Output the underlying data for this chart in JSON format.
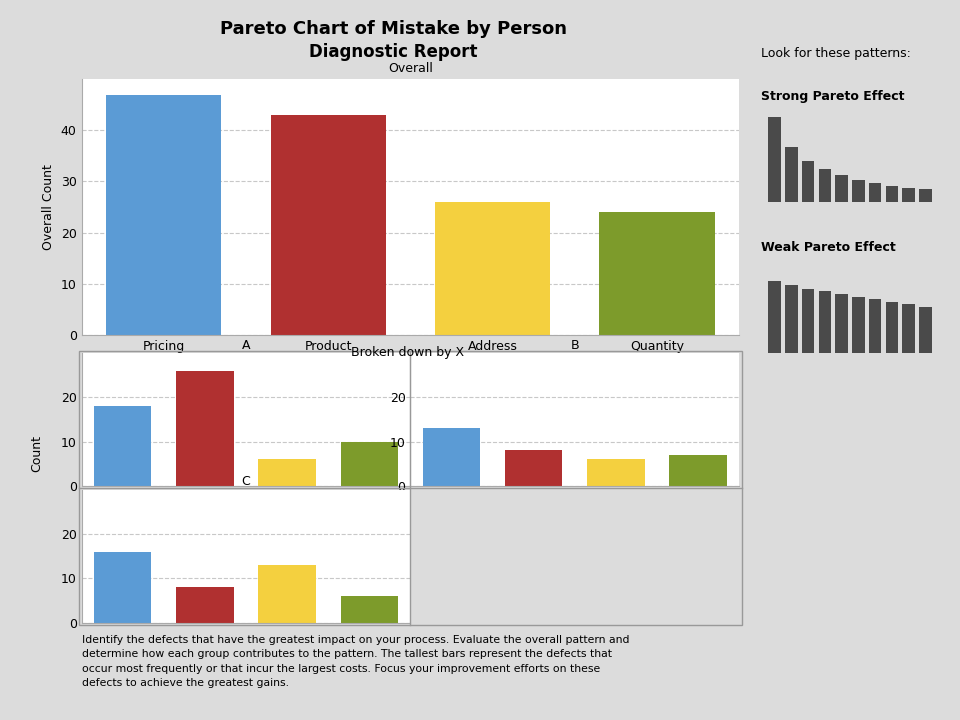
{
  "title_line1": "Pareto Chart of Mistake by Person",
  "title_line2": "Diagnostic Report",
  "overall_label": "Overall",
  "broken_label": "Broken down by X",
  "categories": [
    "Pricing",
    "Product",
    "Address",
    "Quantity"
  ],
  "overall_values": [
    47,
    43,
    26,
    24
  ],
  "overall_colors": [
    "#5B9BD5",
    "#B03030",
    "#F4D03F",
    "#7D9B2B"
  ],
  "overall_ylabel": "Overall Count",
  "overall_ylim": [
    0,
    50
  ],
  "subplot_ylabel": "Count",
  "subplot_ylim": [
    0,
    30
  ],
  "group_A": [
    18,
    26,
    6,
    10
  ],
  "group_B": [
    13,
    8,
    6,
    7
  ],
  "group_C": [
    16,
    8,
    13,
    6
  ],
  "bar_colors": [
    "#5B9BD5",
    "#B03030",
    "#F4D03F",
    "#7D9B2B"
  ],
  "bg_color": "#DCDCDC",
  "plot_bg": "#FFFFFF",
  "annotation_text": "Identify the defects that have the greatest impact on your process. Evaluate the overall pattern and\ndetermine how each group contributes to the pattern. The tallest bars represent the defects that\noccur most frequently or that incur the largest costs. Focus your improvement efforts on these\ndefects to achieve the greatest gains.",
  "look_for_title": "Look for these patterns:",
  "strong_title": "Strong Pareto Effect",
  "weak_title": "Weak Pareto Effect",
  "strong_bars": [
    10,
    6.5,
    4.8,
    3.8,
    3.1,
    2.6,
    2.2,
    1.9,
    1.65,
    1.45
  ],
  "weak_bars": [
    5.5,
    5.2,
    4.9,
    4.7,
    4.5,
    4.3,
    4.1,
    3.9,
    3.7,
    3.5
  ],
  "mini_bg": "#F5C518",
  "mini_bar_color": "#4A4A4A",
  "grid_color": "#C8C8C8",
  "spine_color": "#AAAAAA"
}
